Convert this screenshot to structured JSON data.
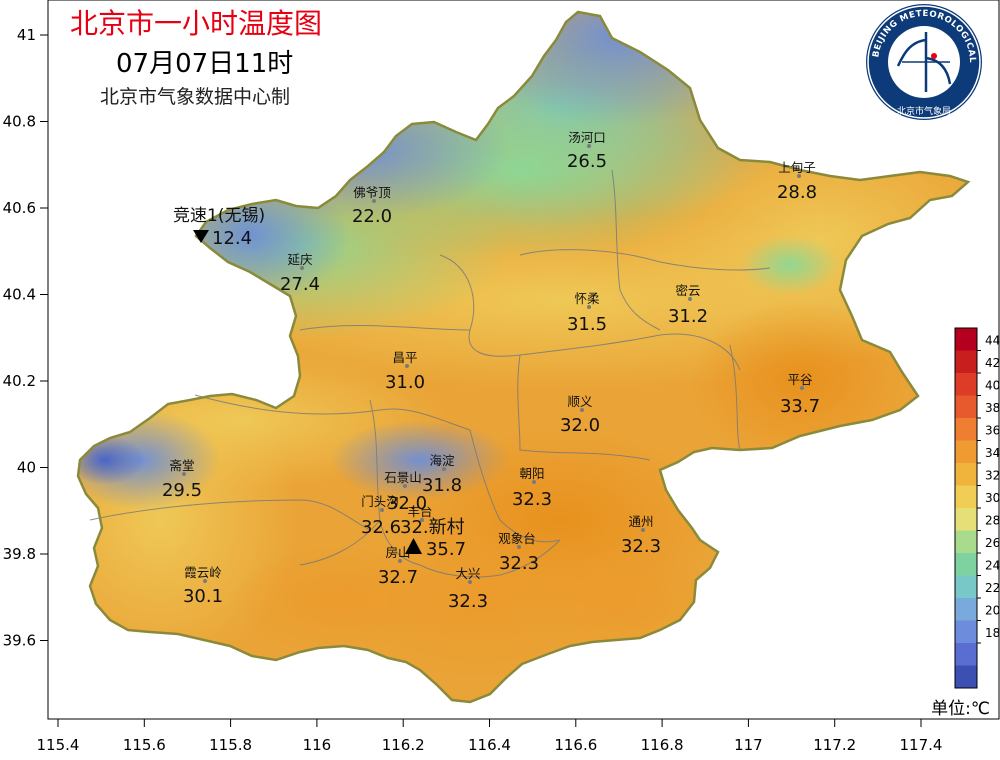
{
  "header": {
    "title": "北京市一小时温度图",
    "datetime": "07月07日11时",
    "source": "北京市气象数据中心制"
  },
  "logo": {
    "ring_text": "BEIJING METEOROLOGICAL SERVICE",
    "bottom_text": "北京市气象局"
  },
  "axes": {
    "x_ticks": [
      "115.4",
      "115.6",
      "115.8",
      "116",
      "116.2",
      "116.4",
      "116.6",
      "116.8",
      "117",
      "117.2",
      "117.4"
    ],
    "y_ticks": [
      "41",
      "40.8",
      "40.6",
      "40.4",
      "40.2",
      "40",
      "39.8",
      "39.6"
    ]
  },
  "districts": [
    {
      "name": "汤河口",
      "value": "26.5"
    },
    {
      "name": "上甸子",
      "value": "28.8"
    },
    {
      "name": "佛爷顶",
      "value": "22.0"
    },
    {
      "name": "延庆",
      "value": "27.4"
    },
    {
      "name": "怀柔",
      "value": "31.5"
    },
    {
      "name": "密云",
      "value": "31.2"
    },
    {
      "name": "昌平",
      "value": "31.0"
    },
    {
      "name": "顺义",
      "value": "32.0"
    },
    {
      "name": "平谷",
      "value": "33.7"
    },
    {
      "name": "斋堂",
      "value": "29.5"
    },
    {
      "name": "海淀",
      "value": "31.8"
    },
    {
      "name": "石景山",
      "value": "32.0"
    },
    {
      "name": "朝阳",
      "value": "32.3"
    },
    {
      "name": "门头沟",
      "value": "32.6"
    },
    {
      "name": "丰台",
      "value": "35.7"
    },
    {
      "name": "观象台",
      "value": "32.3"
    },
    {
      "name": "通州",
      "value": "32.3"
    },
    {
      "name": "霞云岭",
      "value": "30.1"
    },
    {
      "name": "房山",
      "value": "32.7"
    },
    {
      "name": "大兴",
      "value": "32.3"
    }
  ],
  "special_stations": [
    {
      "name": "竞速1(无锡)",
      "value": "12.4",
      "marker": "triangle-down"
    },
    {
      "name": "32.新村",
      "value": "",
      "marker": "triangle-up"
    }
  ],
  "legend": {
    "ticks": [
      "44",
      "42",
      "40",
      "38",
      "36",
      "34",
      "32",
      "30",
      "28",
      "26",
      "24",
      "22",
      "20",
      "18"
    ],
    "colors": [
      "#b4001e",
      "#c81e1e",
      "#dc3c28",
      "#e65a2d",
      "#ef7d32",
      "#f09b32",
      "#f0b43c",
      "#f0cd55",
      "#e6df78",
      "#a8dc8c",
      "#7dd2a0",
      "#78c8c8",
      "#7aaadc",
      "#6e8cdc",
      "#5a6ed2",
      "#3c50b4"
    ],
    "unit_label": "单位:℃"
  }
}
